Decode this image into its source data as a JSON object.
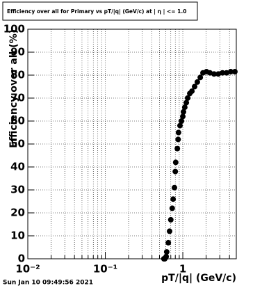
{
  "chart_data": {
    "type": "scatter",
    "title": "Efficiency over all for Primary vs pT/|q| (GeV/c) at | η | <= 1.0",
    "x_label": "pT/|q| (GeV/c)",
    "y_label": "Efficiency over all (%)",
    "timestamp": "Sun Jan 10 09:49:56 2021",
    "x_scale": "log",
    "grid": true,
    "color": "#000000",
    "xlim": [
      0.01,
      4.9
    ],
    "ylim": [
      0,
      100
    ],
    "xticks": [
      {
        "value": 0.01,
        "label": "10⁻²"
      },
      {
        "value": 0.1,
        "label": "10⁻¹"
      },
      1
    ],
    "xminorticks": [
      0.02,
      0.03,
      0.04,
      0.05,
      0.06,
      0.07,
      0.08,
      0.09,
      0.2,
      0.3,
      0.4,
      0.5,
      0.6,
      0.7,
      0.8,
      0.9,
      2,
      3,
      4
    ],
    "yticks": [
      0,
      10,
      20,
      30,
      40,
      50,
      60,
      70,
      80,
      90,
      100
    ],
    "x": [
      0.57,
      0.585,
      0.6,
      0.61,
      0.62,
      0.65,
      0.675,
      0.7,
      0.73,
      0.75,
      0.78,
      0.8,
      0.81,
      0.85,
      0.87,
      0.88,
      0.92,
      0.96,
      1.0,
      1.02,
      1.06,
      1.11,
      1.155,
      1.23,
      1.31,
      1.42,
      1.54,
      1.68,
      1.82,
      2.02,
      2.24,
      2.53,
      2.87,
      3.25,
      3.67,
      4.15,
      4.7
    ],
    "values": [
      0,
      0,
      0.5,
      1,
      3,
      7,
      12,
      17,
      22,
      26,
      31,
      38,
      42,
      48,
      52,
      55,
      58,
      60,
      62,
      64,
      66,
      68,
      70,
      72,
      73,
      75,
      77,
      79,
      81,
      81.5,
      81,
      80.5,
      80.5,
      81,
      81,
      81.5,
      81.5
    ]
  }
}
